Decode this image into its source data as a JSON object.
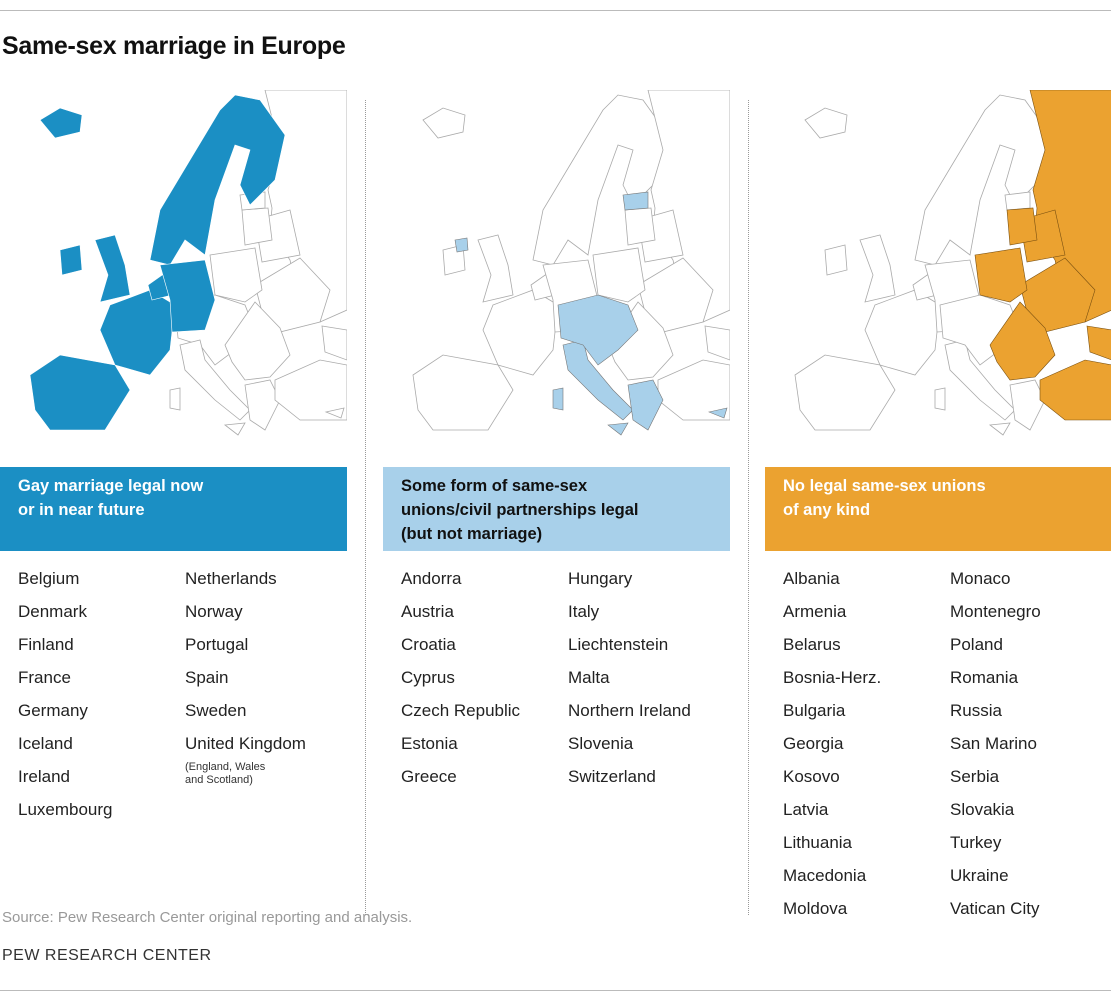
{
  "title": "Same-sex marriage in Europe",
  "panels": [
    {
      "heading": [
        "Gay marriage legal now",
        "or in near future"
      ],
      "columns": [
        [
          "Belgium",
          "Denmark",
          "Finland",
          "France",
          "Germany",
          "Iceland",
          "Ireland",
          "Luxembourg"
        ],
        [
          "Netherlands",
          "Norway",
          "Portugal",
          "Spain",
          "Sweden",
          "United Kingdom"
        ]
      ],
      "note": [
        "(England, Wales",
        "and Scotland)"
      ]
    },
    {
      "heading": [
        "Some form of same-sex",
        "unions/civil partnerships legal",
        "(but not marriage)"
      ],
      "columns": [
        [
          "Andorra",
          "Austria",
          "Croatia",
          "Cyprus",
          "Czech Republic",
          "Estonia",
          "Greece"
        ],
        [
          "Hungary",
          "Italy",
          "Liechtenstein",
          "Malta",
          "Northern Ireland",
          "Slovenia",
          "Switzerland"
        ]
      ]
    },
    {
      "heading": [
        "No legal same-sex unions",
        "of any kind"
      ],
      "columns": [
        [
          "Albania",
          "Armenia",
          "Belarus",
          "Bosnia-Herz.",
          "Bulgaria",
          "Georgia",
          "Kosovo",
          "Latvia",
          "Lithuania",
          "Macedonia",
          "Moldova"
        ],
        [
          "Monaco",
          "Montenegro",
          "Poland",
          "Romania",
          "Russia",
          "San Marino",
          "Serbia",
          "Slovakia",
          "Turkey",
          "Ukraine",
          "Vatican City"
        ]
      ]
    }
  ],
  "source": "Source: Pew Research Center original reporting and analysis.",
  "footer": "PEW RESEARCH CENTER"
}
